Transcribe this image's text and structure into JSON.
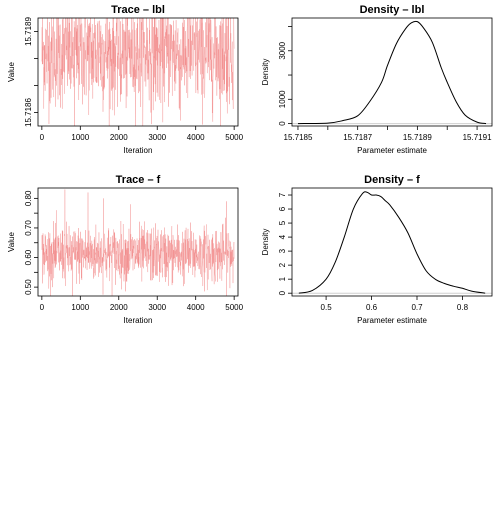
{
  "colors": {
    "trace_line": "#f08080",
    "density_line": "#000000",
    "density_baseline": "#d0d0d0",
    "axis": "#000000",
    "background": "#ffffff"
  },
  "chart_data": [
    {
      "id": "trace-lbl",
      "type": "line",
      "title": "Trace – lbl",
      "xlabel": "Iteration",
      "ylabel": "Value",
      "xlim": [
        -100,
        5100
      ],
      "ylim": [
        15.71855,
        15.71895
      ],
      "x_ticks": [
        0,
        1000,
        2000,
        3000,
        4000,
        5000
      ],
      "x_tick_labels": [
        "0",
        "1000",
        "2000",
        "3000",
        "4000",
        "5000"
      ],
      "y_ticks": [
        15.7186,
        15.7189
      ],
      "y_tick_labels": [
        "15.7186",
        "15.7189"
      ],
      "y_minor_ticks": [
        15.7187,
        15.7188
      ],
      "n_iterations": 5000,
      "mean": 15.71882,
      "typical_low": 15.7186,
      "typical_high": 15.719,
      "extremes": [
        {
          "x": 850,
          "y": 15.71853
        },
        {
          "x": 300,
          "y": 15.71895
        },
        {
          "x": 1500,
          "y": 15.71894
        },
        {
          "x": 3600,
          "y": 15.71857
        },
        {
          "x": 4800,
          "y": 15.71895
        }
      ]
    },
    {
      "id": "density-lbl",
      "type": "line",
      "title": "Density – lbl",
      "xlabel": "Parameter estimate",
      "ylabel": "Density",
      "xlim": [
        15.71848,
        15.71915
      ],
      "ylim": [
        -100,
        4350
      ],
      "x_ticks": [
        15.7185,
        15.7186,
        15.7187,
        15.7188,
        15.7189,
        15.719,
        15.7191
      ],
      "x_tick_labels": [
        "15.7185",
        "",
        "15.7187",
        "",
        "15.7189",
        "",
        "15.7191"
      ],
      "y_ticks": [
        0,
        1000,
        2000,
        3000,
        4000
      ],
      "y_tick_labels": [
        "0",
        "1000",
        "",
        "3000",
        ""
      ],
      "x": [
        15.7185,
        15.7186,
        15.71865,
        15.7187,
        15.71874,
        15.71878,
        15.7188,
        15.71883,
        15.71886,
        15.71888,
        15.7189,
        15.71892,
        15.71895,
        15.71898,
        15.719,
        15.71903,
        15.71906,
        15.7191,
        15.71913
      ],
      "y": [
        0,
        20,
        120,
        320,
        900,
        1700,
        2400,
        3300,
        3900,
        4150,
        4200,
        3950,
        3350,
        2300,
        1700,
        900,
        350,
        60,
        0
      ]
    },
    {
      "id": "trace-f",
      "type": "line",
      "title": "Trace – f",
      "xlabel": "Iteration",
      "ylabel": "Value",
      "xlim": [
        -100,
        5100
      ],
      "ylim": [
        0.47,
        0.835
      ],
      "x_ticks": [
        0,
        1000,
        2000,
        3000,
        4000,
        5000
      ],
      "x_tick_labels": [
        "0",
        "1000",
        "2000",
        "3000",
        "4000",
        "5000"
      ],
      "y_ticks": [
        0.5,
        0.6,
        0.7,
        0.8
      ],
      "y_tick_labels": [
        "0.50",
        "0.60",
        "0.70",
        "0.80"
      ],
      "y_minor_ticks": [
        0.55,
        0.65,
        0.75
      ],
      "n_iterations": 5000,
      "mean": 0.61,
      "typical_low": 0.52,
      "typical_high": 0.71,
      "extremes": [
        {
          "x": 600,
          "y": 0.83
        },
        {
          "x": 800,
          "y": 0.47
        },
        {
          "x": 1200,
          "y": 0.82
        },
        {
          "x": 1600,
          "y": 0.8
        },
        {
          "x": 2300,
          "y": 0.78
        },
        {
          "x": 4300,
          "y": 0.49
        },
        {
          "x": 4800,
          "y": 0.79
        }
      ]
    },
    {
      "id": "density-f",
      "type": "line",
      "title": "Density – f",
      "xlabel": "Parameter estimate",
      "ylabel": "Density",
      "xlim": [
        0.425,
        0.865
      ],
      "ylim": [
        -0.2,
        7.5
      ],
      "x_ticks": [
        0.5,
        0.6,
        0.7,
        0.8
      ],
      "x_tick_labels": [
        "0.5",
        "0.6",
        "0.7",
        "0.8"
      ],
      "y_ticks": [
        0,
        1,
        2,
        3,
        4,
        5,
        6,
        7
      ],
      "y_tick_labels": [
        "0",
        "1",
        "2",
        "3",
        "4",
        "5",
        "6",
        "7"
      ],
      "x": [
        0.44,
        0.47,
        0.5,
        0.52,
        0.54,
        0.56,
        0.58,
        0.59,
        0.6,
        0.61,
        0.62,
        0.63,
        0.64,
        0.66,
        0.68,
        0.7,
        0.72,
        0.74,
        0.76,
        0.78,
        0.8,
        0.82,
        0.85
      ],
      "y": [
        0,
        0.2,
        1.0,
        2.2,
        4.0,
        6.0,
        7.1,
        7.2,
        7.0,
        7.0,
        6.9,
        6.6,
        6.3,
        5.4,
        4.3,
        2.8,
        1.6,
        1.0,
        0.7,
        0.5,
        0.35,
        0.15,
        0
      ]
    }
  ]
}
